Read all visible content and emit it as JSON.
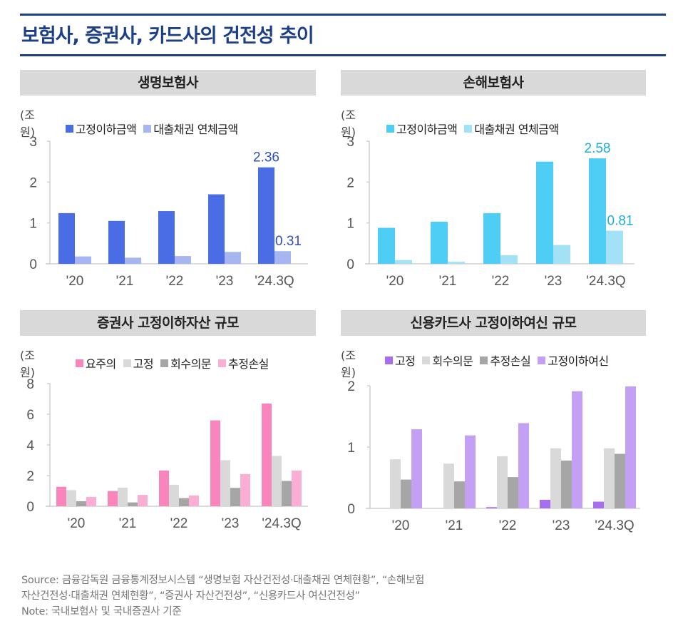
{
  "title": "보험사, 증권사, 카드사의 건전성 추이",
  "footer": {
    "source_line1": "Source: 금융감독원 금융통계정보시스템 “생명보험 자산건전성·대출채권 연체현황”, “손해보험",
    "source_line2": "자산건전성·대출채권 연체현황”, “증권사 자산건전성”, “신용카드사 여신건전성”",
    "note": "Note: 국내보험사 및 국내증권사 기준"
  },
  "chart_data": [
    {
      "type": "bar",
      "title": "생명보험사",
      "ylabel": "(조 원)",
      "xlabel": "",
      "categories": [
        "'20",
        "'21",
        "'22",
        "'23",
        "'24.3Q"
      ],
      "ylim": [
        0,
        3
      ],
      "yticks": [
        0,
        1,
        2,
        3
      ],
      "grid": false,
      "legend_position": "top",
      "series": [
        {
          "name": "고정이하금액",
          "color": "#4a6de5",
          "values": [
            1.24,
            1.05,
            1.29,
            1.7,
            2.36
          ]
        },
        {
          "name": "대출채권 연체금액",
          "color": "#a6b6f0",
          "values": [
            0.18,
            0.15,
            0.19,
            0.29,
            0.31
          ]
        }
      ],
      "data_labels": [
        {
          "series": 0,
          "index": 4,
          "text": "2.36",
          "color": "#2f4fc4"
        },
        {
          "series": 1,
          "index": 4,
          "text": "0.31",
          "color": "#2f4fc4"
        }
      ]
    },
    {
      "type": "bar",
      "title": "손해보험사",
      "ylabel": "(조 원)",
      "xlabel": "",
      "categories": [
        "'20",
        "'21",
        "'22",
        "'23",
        "'24.3Q"
      ],
      "ylim": [
        0,
        3
      ],
      "yticks": [
        0,
        1,
        2,
        3
      ],
      "grid": false,
      "legend_position": "top",
      "series": [
        {
          "name": "고정이하금액",
          "color": "#4ecdf5",
          "values": [
            0.88,
            1.03,
            1.24,
            2.5,
            2.58
          ]
        },
        {
          "name": "대출채권 연체금액",
          "color": "#a3e1f7",
          "values": [
            0.09,
            0.05,
            0.21,
            0.46,
            0.81
          ]
        }
      ],
      "data_labels": [
        {
          "series": 0,
          "index": 4,
          "text": "2.58",
          "color": "#1aaee0"
        },
        {
          "series": 1,
          "index": 4,
          "text": "0.81",
          "color": "#1aaee0"
        }
      ]
    },
    {
      "type": "bar",
      "title": "증권사 고정이하자산 규모",
      "ylabel": "(조 원)",
      "xlabel": "",
      "categories": [
        "'20",
        "'21",
        "'22",
        "'23",
        "'24.3Q"
      ],
      "ylim": [
        0,
        8
      ],
      "yticks": [
        0,
        2,
        4,
        6,
        8
      ],
      "grid": false,
      "legend_position": "top",
      "series": [
        {
          "name": "요주의",
          "color": "#f886bd",
          "values": [
            1.27,
            0.99,
            2.33,
            5.6,
            6.7
          ]
        },
        {
          "name": "고정",
          "color": "#d9d9d9",
          "values": [
            1.05,
            1.21,
            1.4,
            3.0,
            3.28
          ]
        },
        {
          "name": "회수의문",
          "color": "#a6a6a6",
          "values": [
            0.33,
            0.25,
            0.53,
            1.2,
            1.65
          ]
        },
        {
          "name": "추정손실",
          "color": "#fbaed3",
          "values": [
            0.61,
            0.74,
            0.7,
            2.1,
            2.33
          ]
        }
      ],
      "data_labels": []
    },
    {
      "type": "bar",
      "title": "신용카드사 고정이하여신 규모",
      "ylabel": "(조 원)",
      "xlabel": "",
      "categories": [
        "'20",
        "'21",
        "'22",
        "'23",
        "'24.3Q"
      ],
      "ylim": [
        0,
        2
      ],
      "yticks": [
        0,
        1,
        2
      ],
      "grid": false,
      "legend_position": "top",
      "series": [
        {
          "name": "고정",
          "color": "#a56ff0",
          "values": [
            0.0,
            0.0,
            0.02,
            0.14,
            0.11
          ]
        },
        {
          "name": "회수의문",
          "color": "#d9d9d9",
          "values": [
            0.8,
            0.73,
            0.85,
            0.98,
            0.98
          ]
        },
        {
          "name": "추정손실",
          "color": "#a6a6a6",
          "values": [
            0.47,
            0.44,
            0.51,
            0.78,
            0.89
          ]
        },
        {
          "name": "고정이하여신",
          "color": "#c4a0f5",
          "values": [
            1.29,
            1.19,
            1.39,
            1.91,
            1.99
          ]
        }
      ],
      "data_labels": []
    }
  ]
}
